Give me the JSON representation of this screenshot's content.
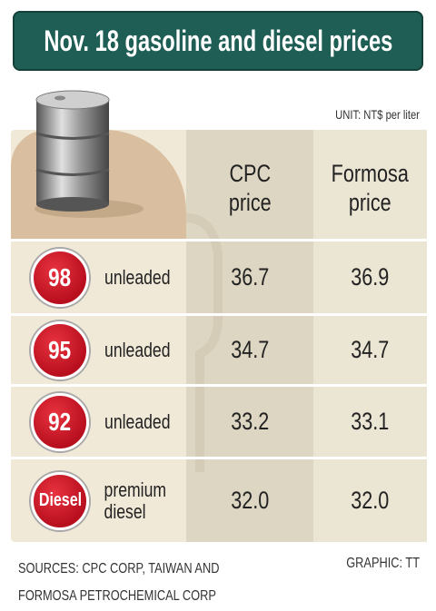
{
  "header": {
    "title": "Nov. 18 gasoline and diesel prices",
    "unit": "UNIT: NT$ per liter"
  },
  "table": {
    "columns": [
      "CPC\nprice",
      "Formosa\nprice"
    ],
    "rows": [
      {
        "badge": "98",
        "label": "unleaded",
        "cells": [
          "36.7",
          "36.9"
        ]
      },
      {
        "badge": "95",
        "label": "unleaded",
        "cells": [
          "34.7",
          "34.7"
        ]
      },
      {
        "badge": "92",
        "label": "unleaded",
        "cells": [
          "33.2",
          "33.1"
        ]
      },
      {
        "badge": "Diesel",
        "label": "premium\ndiesel",
        "cells": [
          "32.0",
          "32.0"
        ]
      }
    ]
  },
  "footer": {
    "sources": "SOURCES: CPC CORP, TAIWAN AND\nFORMOSA PETROCHEMICAL CORP",
    "credit": "GRAPHIC: TT"
  }
}
